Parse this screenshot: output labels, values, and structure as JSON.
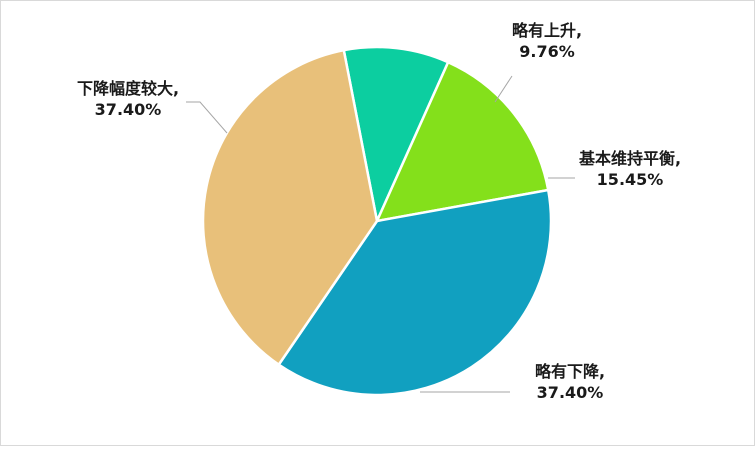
{
  "chart_data": {
    "type": "pie",
    "title": "",
    "legend": "none",
    "slices": [
      {
        "name": "略有上升",
        "value": 9.76,
        "label_name": "略有上升,",
        "label_value": "9.76%",
        "color": "#0ccea0"
      },
      {
        "name": "基本维持平衡",
        "value": 15.45,
        "label_name": "基本维持平衡,",
        "label_value": "15.45%",
        "color": "#84e01b"
      },
      {
        "name": "略有下降",
        "value": 37.4,
        "label_name": "略有下降,",
        "label_value": "37.40%",
        "color": "#11a0c0"
      },
      {
        "name": "下降幅度较大",
        "value": 37.4,
        "label_name": "下降幅度较大,",
        "label_value": "37.40%",
        "color": "#e8c07a"
      }
    ]
  }
}
